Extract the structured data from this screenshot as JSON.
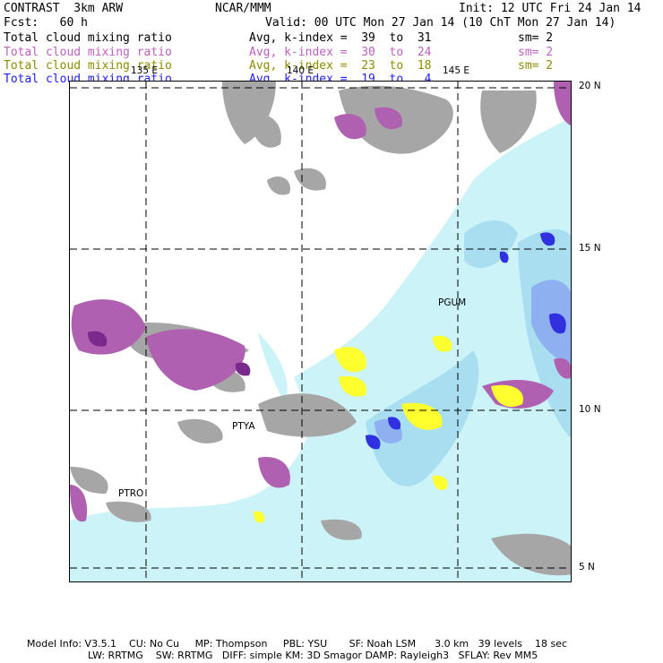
{
  "header": {
    "left_title": "CONTRAST  3km ARW",
    "center_title": "NCAR/MMM",
    "init": "Init: 12 UTC Fri 24 Jan 14",
    "fcst": "Fcst:   60 h",
    "valid": "Valid: 00 UTC Mon 27 Jan 14 (10 ChT Mon 27 Jan 14)"
  },
  "legend": [
    {
      "field": "Total cloud mixing ratio",
      "range": "Avg, k-index =  39  to  31",
      "sm": "sm= 2",
      "color": "#000000"
    },
    {
      "field": "Total cloud mixing ratio",
      "range": "Avg, k-index =  30  to  24",
      "sm": "sm= 2",
      "color": "#c060c0"
    },
    {
      "field": "Total cloud mixing ratio",
      "range": "Avg, k-index =  23  to  18",
      "sm": "sm= 2",
      "color": "#8c8c00"
    },
    {
      "field": "Total cloud mixing ratio",
      "range": "Avg, k-index =  19  to   4",
      "sm": "",
      "color": "#2020ff"
    }
  ],
  "map": {
    "lon_labels": [
      "135 E",
      "140 E",
      "145 E"
    ],
    "lat_labels": [
      "20 N",
      "15 N",
      "10 N",
      "5 N"
    ],
    "stations": [
      "PGUM",
      "PTYA",
      "PTRO"
    ],
    "layer_colors": {
      "high_cloud": "#a0a0a0",
      "mid_cloud": "#b060b0",
      "low_cloud": "#ffff30",
      "shallow_cloud": "#ccf4f8",
      "deep_cloud": "#3030e0"
    }
  },
  "footer": {
    "line1": "Model Info: V3.5.1    CU: No Cu     MP: Thompson     PBL: YSU       SF: Noah LSM      3.0 km   39 levels    18 sec",
    "line2": "LW: RRTMG    SW: RRTMG   DIFF: simple KM: 3D Smagor DAMP: Rayleigh3   SFLAY: Rev MM5"
  }
}
